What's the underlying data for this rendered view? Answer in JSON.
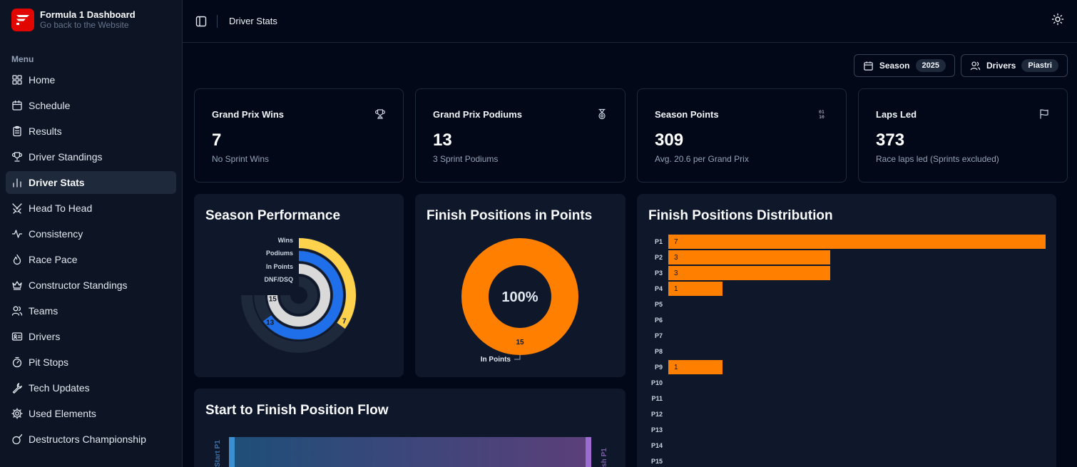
{
  "brand": {
    "title": "Formula 1 Dashboard",
    "subtitle": "Go back to the Website"
  },
  "menu_label": "Menu",
  "nav": [
    {
      "label": "Home",
      "icon": "grid-icon"
    },
    {
      "label": "Schedule",
      "icon": "calendar-icon"
    },
    {
      "label": "Results",
      "icon": "clipboard-icon"
    },
    {
      "label": "Driver Standings",
      "icon": "trophy-icon"
    },
    {
      "label": "Driver Stats",
      "icon": "bar-chart-icon",
      "active": true
    },
    {
      "label": "Head To Head",
      "icon": "swords-icon"
    },
    {
      "label": "Consistency",
      "icon": "activity-icon"
    },
    {
      "label": "Race Pace",
      "icon": "flame-icon"
    },
    {
      "label": "Constructor Standings",
      "icon": "crown-icon"
    },
    {
      "label": "Teams",
      "icon": "users-icon"
    },
    {
      "label": "Drivers",
      "icon": "id-card-icon"
    },
    {
      "label": "Pit Stops",
      "icon": "timer-icon"
    },
    {
      "label": "Tech Updates",
      "icon": "wrench-icon"
    },
    {
      "label": "Used Elements",
      "icon": "cog-icon"
    },
    {
      "label": "Destructors Championship",
      "icon": "bomb-icon"
    }
  ],
  "header": {
    "title": "Driver Stats"
  },
  "filters": {
    "season_label": "Season",
    "season_value": "2025",
    "drivers_label": "Drivers",
    "drivers_value": "Piastri"
  },
  "stats": [
    {
      "title": "Grand Prix Wins",
      "value": "7",
      "sub": "No Sprint Wins",
      "icon": "trophy-icon"
    },
    {
      "title": "Grand Prix Podiums",
      "value": "13",
      "sub": "3 Sprint Podiums",
      "icon": "medal-icon"
    },
    {
      "title": "Season Points",
      "value": "309",
      "sub": "Avg. 20.6 per Grand Prix",
      "icon": "binary-icon"
    },
    {
      "title": "Laps Led",
      "value": "373",
      "sub": "Race laps led (Sprints excluded)",
      "icon": "flag-icon"
    }
  ],
  "colors": {
    "accent": "#ff8000",
    "blue": "#1f6feb",
    "yellow": "#ffd24d",
    "light": "#d9d9d9",
    "track": "#1e293b"
  },
  "chart_data": [
    {
      "type": "radial-bar",
      "title": "Season Performance",
      "max": 15,
      "series": [
        {
          "name": "Wins",
          "value": 7,
          "label": "7",
          "color": "#ffd24d"
        },
        {
          "name": "Podiums",
          "value": 13,
          "label": "13",
          "color": "#1f6feb"
        },
        {
          "name": "In Points",
          "value": 15,
          "label": "15",
          "color": "#d9d9d9"
        },
        {
          "name": "DNF/DSQ",
          "value": 0,
          "label": "",
          "color": "#1e293b"
        }
      ]
    },
    {
      "type": "pie",
      "title": "Finish Positions in Points",
      "center_label": "100%",
      "slices": [
        {
          "name": "In Points",
          "value": 15,
          "label": "15"
        }
      ]
    },
    {
      "type": "bar",
      "orientation": "horizontal",
      "title": "Finish Positions Distribution",
      "categories": [
        "P1",
        "P2",
        "P3",
        "P4",
        "P5",
        "P6",
        "P7",
        "P8",
        "P9",
        "P10",
        "P11",
        "P12",
        "P13",
        "P14",
        "P15"
      ],
      "values": [
        7,
        3,
        3,
        1,
        0,
        0,
        0,
        0,
        1,
        0,
        0,
        0,
        0,
        0,
        0
      ],
      "xlim": [
        0,
        7
      ]
    },
    {
      "type": "sankey",
      "title": "Start to Finish Position Flow",
      "left_label": "Start P1",
      "right_label": "sh P1"
    }
  ]
}
